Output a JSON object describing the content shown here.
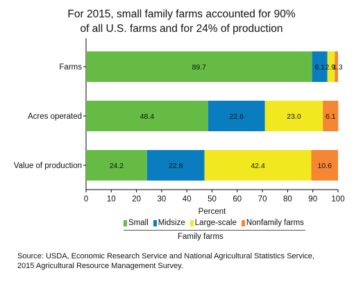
{
  "title_line1": "For 2015, small family farms accounted for 90%",
  "title_line2": "of all U.S. farms and for 24% of production",
  "source_line1": "Source: USDA, Economic Research Service and National Agricultural Statistics Service,",
  "source_line2": "2015 Agricultural Resource Management Survey.",
  "chart_data": {
    "type": "bar",
    "orientation": "horizontal",
    "stacked": true,
    "categories": [
      "Farms",
      "Acres operated",
      "Value of production"
    ],
    "series": [
      {
        "name": "Small",
        "color": "#66bb44",
        "values": [
          89.7,
          48.4,
          24.2
        ],
        "labels": [
          "89.7",
          "48.4",
          "24.2"
        ]
      },
      {
        "name": "Midsize",
        "color": "#0a7dc1",
        "values": [
          6.1,
          22.6,
          22.8
        ],
        "labels": [
          "6.1",
          "22.6",
          "22.8"
        ]
      },
      {
        "name": "Large-scale",
        "color": "#f2e81f",
        "values": [
          2.9,
          23.0,
          42.4
        ],
        "labels": [
          "2.9",
          "23.0",
          "42.4"
        ]
      },
      {
        "name": "Nonfamily farms",
        "color": "#f58634",
        "values": [
          1.3,
          6.1,
          10.6
        ],
        "labels": [
          "1.3",
          "6.1",
          "10.6"
        ]
      }
    ],
    "xlabel": "Percent",
    "xlim": [
      0,
      100
    ],
    "xticks": [
      "0",
      "10",
      "20",
      "30",
      "40",
      "50",
      "60",
      "70",
      "80",
      "90",
      "100"
    ],
    "legend_group_label": "Family farms",
    "legend_position": "bottom",
    "grid": false
  }
}
